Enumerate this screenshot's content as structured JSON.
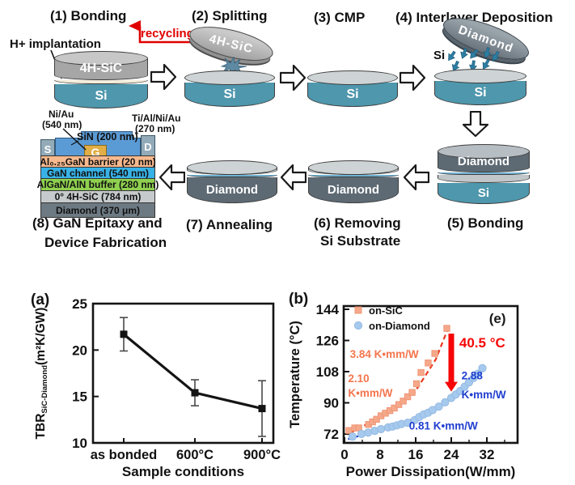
{
  "figure": {
    "process_flow": {
      "steps": [
        {
          "title": "(1) Bonding"
        },
        {
          "title": "(2) Splitting"
        },
        {
          "title": "(3) CMP"
        },
        {
          "title": "(4) Interlayer Deposition"
        },
        {
          "title": "(5) Bonding"
        },
        {
          "title": "(6) Removing",
          "title2": "Si Substrate"
        },
        {
          "title": "(7) Annealing"
        },
        {
          "title": "(8) GaN Epitaxy and",
          "title2": "Device Fabrication"
        }
      ],
      "annotations": {
        "h_implantation": "H+ implantation",
        "recycling": "recycling",
        "si_atoms": "Si"
      },
      "wafer_labels": {
        "sic": "4H-SiC",
        "si": "Si",
        "diamond": "Diamond"
      },
      "colors": {
        "si": "#4e97ad",
        "sic_gray": "#a6a6a6",
        "diamond": "#5d6a74",
        "interlayer": "#c1c6c9",
        "implant_line": "#f3eddb",
        "cap_light": "#ced4d6",
        "cap_gray": "#c7c7c7",
        "cap_dark": "#b7bec3",
        "bond_line_blue": "#6fb4d6",
        "deposition_arrow": "#2e7ea3",
        "recycle_red": "#e00000"
      },
      "device": {
        "contact_labels": {
          "ni_au": "Ni/Au",
          "ni_au_t": "(540 nm)",
          "ti_al": "Ti/Al/Ni/Au",
          "ti_al_t": "(270 nm)",
          "sin": "SiN (200 nm)",
          "s": "S",
          "g": "G",
          "d": "D"
        },
        "layers": [
          {
            "label": "Al₀.₂₅GaN barrier (20 nm)",
            "color": "#f7b98e"
          },
          {
            "label": "GaN channel (540 nm)",
            "color": "#38b2e6"
          },
          {
            "label": "AlGaN/AlN buffer (280 nm)",
            "color": "#8fd04f"
          },
          {
            "label": "0° 4H-SiC (784 nm)",
            "color": "#c6cacc"
          },
          {
            "label": "Diamond (370 μm)",
            "color": "#6e7a83"
          }
        ]
      }
    }
  },
  "chart_data": [
    {
      "id": "a",
      "type": "line",
      "panel_label": "(a)",
      "categories": [
        "as bonded",
        "600°C",
        "900°C"
      ],
      "values": [
        21.7,
        15.4,
        13.7
      ],
      "error_bars": [
        1.8,
        1.4,
        3.0
      ],
      "xlabel": "Sample conditions",
      "ylabel_parts": [
        {
          "t": "TBR"
        },
        {
          "t": "SiC-Diamond",
          "sub": true
        },
        {
          "t": "(m²K/GW)"
        }
      ],
      "ylim": [
        10,
        25
      ],
      "yticks": [
        10,
        15,
        20,
        25
      ],
      "line_color": "#141414",
      "marker": "square",
      "grid": false
    },
    {
      "id": "b",
      "type": "scatter",
      "panel_label": "(b)",
      "xlabel": "Power Dissipation(W/mm)",
      "ylabel": "Temperature (°C)",
      "xlim": [
        0,
        38
      ],
      "ylim": [
        68,
        146
      ],
      "xticks": [
        0,
        8,
        16,
        24,
        32
      ],
      "xminor": [
        4,
        12,
        20,
        28,
        36
      ],
      "yticks": [
        72,
        90,
        108,
        126,
        144
      ],
      "legend_position": "top-left inside",
      "series": [
        {
          "name": "on-SiC",
          "marker": "square",
          "color": "#f6a88b",
          "edge": "#ee9776",
          "x": [
            1,
            2.3,
            3.2,
            5.4,
            6.3,
            7.2,
            8.2,
            9.2,
            10.2,
            11.2,
            12.2,
            13.2,
            14.2,
            15.2,
            16.2,
            17.2,
            18.8,
            20.3,
            23
          ],
          "y": [
            74,
            75.5,
            75.5,
            77.5,
            79,
            80.5,
            82.5,
            84,
            85.5,
            87,
            89,
            91,
            93.5,
            96,
            101,
            107.5,
            113,
            118.5,
            133
          ]
        },
        {
          "name": "on-Diamond",
          "marker": "circle",
          "color": "#a6c9ee",
          "edge": "#95bae2",
          "x": [
            1.8,
            3.8,
            5.3,
            6.8,
            8.2,
            9.8,
            10.8,
            11.8,
            12.8,
            14.2,
            15.8,
            16.8,
            17.8,
            18.8,
            19.8,
            21.2,
            22.6,
            24,
            25,
            26,
            27,
            28,
            29,
            30,
            31
          ],
          "y": [
            70.5,
            72,
            72.8,
            73.8,
            74.8,
            75.8,
            76.3,
            77,
            77.8,
            78.5,
            80,
            81.8,
            83.3,
            84.3,
            85.8,
            87.8,
            90.3,
            92.8,
            94.8,
            96.8,
            99.3,
            101.8,
            104.3,
            106.8,
            110
          ]
        }
      ],
      "trend_lines": [
        {
          "color": "#e8391f",
          "dash": true,
          "points": [
            [
              1.2,
              72.5
            ],
            [
              6,
              79
            ],
            [
              11,
              86.5
            ],
            [
              15.5,
              95
            ],
            [
              18,
              105
            ],
            [
              20.5,
              115
            ],
            [
              23.6,
              135
            ]
          ]
        },
        {
          "color": "#2140d0",
          "dash": true,
          "points": [
            [
              0.8,
              69
            ],
            [
              6,
              73
            ],
            [
              12,
              77.5
            ],
            [
              17,
              82
            ],
            [
              20,
              86
            ],
            [
              23,
              91.5
            ],
            [
              26,
              97
            ],
            [
              29,
              104
            ],
            [
              31.5,
              111
            ]
          ]
        }
      ],
      "arrow": {
        "x": 24,
        "y_from": 130,
        "y_to": 96.5,
        "color": "#f60606",
        "label": "40.5 °C"
      },
      "annotations": [
        {
          "text": "3.84 K•mm/W",
          "color": "#f4764e",
          "x": 1.2,
          "y": 116,
          "size": 13.5
        },
        {
          "text": "2.10",
          "color": "#f4764e",
          "x": 0.8,
          "y": 102,
          "size": 13.5
        },
        {
          "text": "K•mm/W",
          "color": "#f4764e",
          "x": 0.8,
          "y": 93.5,
          "size": 13.5
        },
        {
          "text": "2.88",
          "color": "#2140d0",
          "x": 26.3,
          "y": 103.5,
          "size": 13.5
        },
        {
          "text": "K•mm/W",
          "color": "#2140d0",
          "x": 26.3,
          "y": 92.5,
          "size": 13.5
        },
        {
          "text": "0.81 K•mm/W",
          "color": "#2140d0",
          "x": 14.5,
          "y": 74.5,
          "size": 13.5
        },
        {
          "text": "40.5 °C",
          "color": "#f60606",
          "x": 25.8,
          "y": 122,
          "size": 17
        },
        {
          "text": "(e)",
          "color": "#1a1a1a",
          "x": 32.5,
          "y": 136,
          "size": 17
        }
      ]
    }
  ]
}
